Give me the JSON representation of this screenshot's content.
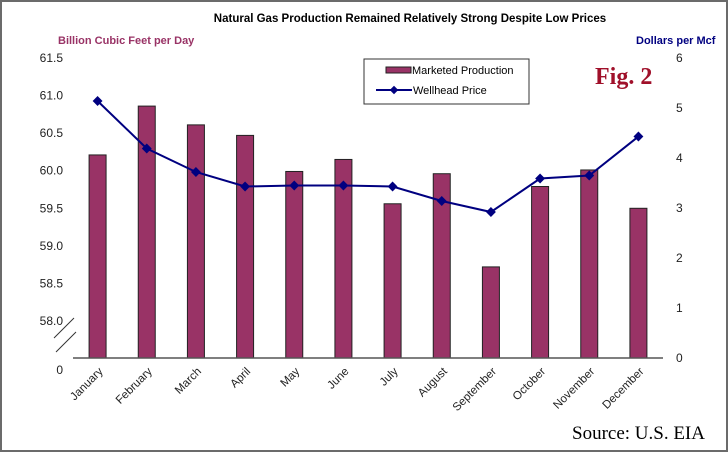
{
  "chart_data": {
    "type": "bar",
    "title": "Natural Gas Production Remained Relatively Strong Despite Low Prices",
    "annotation_fig": "Fig. 2",
    "annotation_source": "Source: U.S. EIA",
    "xlabel": "",
    "ylabel_left": "Billion Cubic Feet per Day",
    "ylabel_right": "Dollars per Mcf",
    "categories": [
      "January",
      "February",
      "March",
      "April",
      "May",
      "June",
      "July",
      "August",
      "September",
      "October",
      "November",
      "December"
    ],
    "left_axis": {
      "ylim": [
        58.0,
        61.5
      ],
      "ticks": [
        "61.5",
        "61.0",
        "60.5",
        "60.0",
        "59.5",
        "59.0",
        "58.5",
        "58.0"
      ],
      "tick_values": [
        61.5,
        61.0,
        60.5,
        60.0,
        59.5,
        59.0,
        58.5,
        58.0
      ],
      "broken_axis_zero_label": "0"
    },
    "right_axis": {
      "ylim": [
        0,
        6
      ],
      "ticks": [
        "6",
        "5",
        "4",
        "3",
        "2",
        "1",
        "0"
      ],
      "tick_values": [
        6,
        5,
        4,
        3,
        2,
        1,
        0
      ]
    },
    "series": [
      {
        "name": "Marketed Production",
        "type": "bar",
        "axis": "left",
        "color": "#993366",
        "values": [
          60.21,
          60.86,
          60.61,
          60.47,
          59.99,
          60.15,
          59.56,
          59.96,
          58.72,
          59.79,
          60.01,
          59.5
        ]
      },
      {
        "name": "Wellhead Price",
        "type": "line",
        "axis": "right",
        "color": "#000080",
        "values": [
          5.14,
          4.19,
          3.72,
          3.43,
          3.45,
          3.45,
          3.43,
          3.14,
          2.92,
          3.59,
          3.65,
          4.43
        ]
      }
    ],
    "legend": {
      "placement": "top-center",
      "entries": [
        "Marketed Production",
        "Wellhead Price"
      ]
    },
    "grid": false
  }
}
